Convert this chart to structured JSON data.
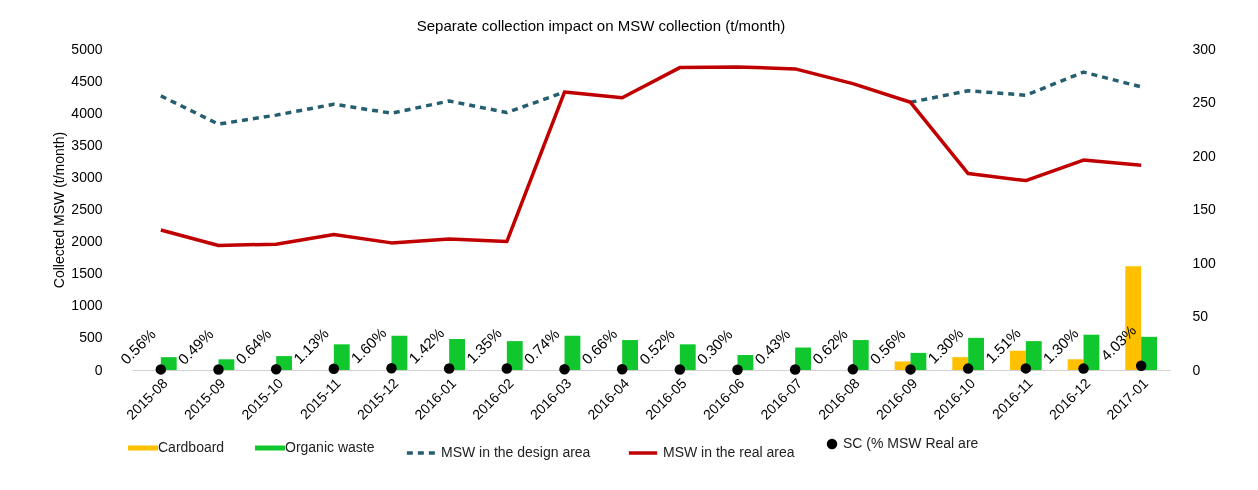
{
  "chart_data": {
    "type": "bar",
    "title": "Separate collection impact on MSW collection (t/month)",
    "ylabel": "Collected MSW (t/month)",
    "categories": [
      "2015-08",
      "2015-09",
      "2015-10",
      "2015-11",
      "2015-12",
      "2016-01",
      "2016-02",
      "2016-03",
      "2016-04",
      "2016-05",
      "2016-06",
      "2016-07",
      "2016-08",
      "2016-09",
      "2016-10",
      "2016-11",
      "2016-12",
      "2017-01"
    ],
    "series": [
      {
        "name": "Cardboard",
        "axis": "y2",
        "color": "#ffc000",
        "values": [
          0,
          0,
          0,
          0,
          0,
          0,
          0,
          0,
          0,
          0,
          0,
          0,
          0,
          8,
          12,
          18,
          10,
          97
        ]
      },
      {
        "name": "Organic waste",
        "axis": "y2",
        "color": "#10c82e",
        "values": [
          12,
          10,
          13,
          24,
          32,
          29,
          27,
          32,
          28,
          24,
          14,
          21,
          28,
          16,
          30,
          27,
          33,
          31
        ]
      },
      {
        "name": "MSW in the design area",
        "type": "line",
        "line_style": "dashed",
        "color": "#255e6e",
        "values": [
          4270,
          3830,
          3970,
          4140,
          4000,
          4190,
          4010,
          4330,
          null,
          null,
          null,
          null,
          null,
          4170,
          4350,
          4280,
          4640,
          4410
        ]
      },
      {
        "name": "MSW in the real area",
        "type": "line",
        "line_style": "solid",
        "color": "#c00000",
        "values": [
          2180,
          1940,
          1960,
          2110,
          1980,
          2040,
          2000,
          4330,
          4240,
          4710,
          4720,
          4690,
          4460,
          4170,
          3060,
          2950,
          3270,
          3190
        ]
      },
      {
        "name": "SC (% MSW Real are",
        "type": "scatter",
        "axis": "y2",
        "color": "#000000",
        "values": [
          0.56,
          0.49,
          0.64,
          1.13,
          1.6,
          1.42,
          1.35,
          0.74,
          0.66,
          0.52,
          0.3,
          0.43,
          0.62,
          0.56,
          1.3,
          1.51,
          1.3,
          4.03
        ],
        "value_labels": [
          "0.56%",
          "0.49%",
          "0.64%",
          "1.13%",
          "1.60%",
          "1.42%",
          "1.35%",
          "0.74%",
          "0.66%",
          "0.52%",
          "0.30%",
          "0.43%",
          "0.62%",
          "0.56%",
          "1.30%",
          "1.51%",
          "1.30%",
          "4.03%"
        ]
      }
    ],
    "ylim": [
      0,
      5000
    ],
    "yticks": [
      0,
      500,
      1000,
      1500,
      2000,
      2500,
      3000,
      3500,
      4000,
      4500,
      5000
    ],
    "y2lim": [
      0,
      300
    ],
    "y2ticks": [
      0,
      50,
      100,
      150,
      200,
      250,
      300
    ],
    "grid": false,
    "legend": "bottom"
  }
}
